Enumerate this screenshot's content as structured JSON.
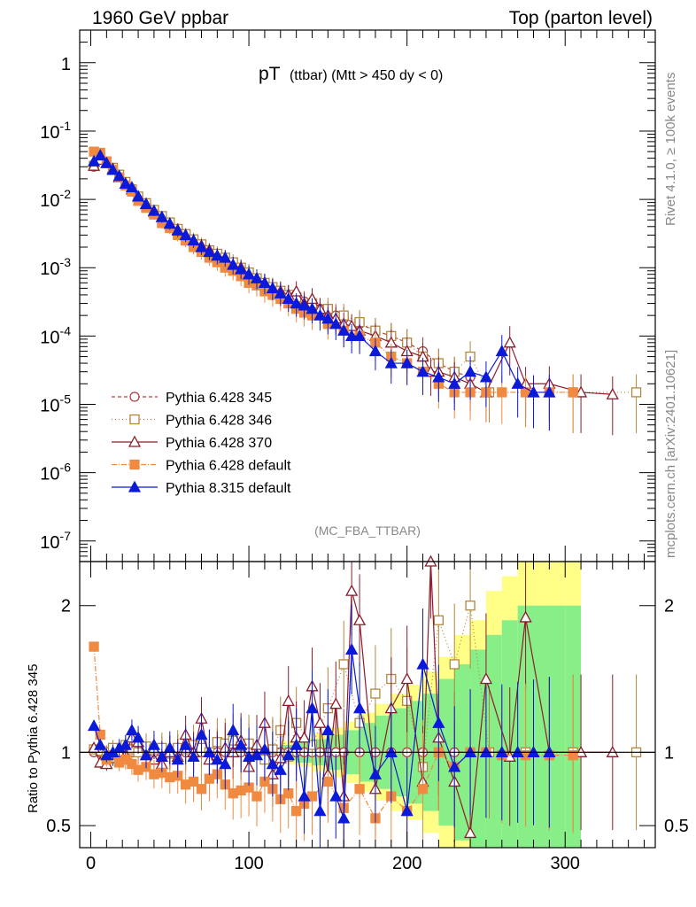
{
  "header": {
    "left": "1960 GeV ppbar",
    "right": "Top (parton level)"
  },
  "side_labels": {
    "top": "Rivet 4.1.0, ≥ 100k events",
    "bottom": "mcplots.cern.ch [arXiv:2401.10621]"
  },
  "chart_data": {
    "type": "line",
    "title_main": "pT",
    "title_rest": "(ttbar) (Mtt > 450 dy < 0)",
    "analysis": "(MC_FBA_TTBAR)",
    "xlabel": "",
    "xlim": [
      -7,
      357
    ],
    "xticks": [
      "0",
      "100",
      "200",
      "300"
    ],
    "main": {
      "yscale": "log",
      "ylim": [
        5e-08,
        3
      ],
      "yticks": [
        {
          "base": "10",
          "exp": "-7",
          "value": 1e-07
        },
        {
          "base": "10",
          "exp": "-6",
          "value": 1e-06
        },
        {
          "base": "10",
          "exp": "-5",
          "value": 1e-05
        },
        {
          "base": "10",
          "exp": "-4",
          "value": 0.0001
        },
        {
          "base": "10",
          "exp": "-3",
          "value": 0.001
        },
        {
          "base": "10",
          "exp": "-2",
          "value": 0.01
        },
        {
          "base": "10",
          "exp": "-1",
          "value": 0.1
        },
        {
          "base": "1",
          "exp": "",
          "value": 1
        }
      ]
    },
    "ratio": {
      "ylabel": "Ratio to Pythia 6.428 345",
      "ylim": [
        0.35,
        2.3
      ],
      "yticks": [
        {
          "label": "0.5",
          "value": 0.5
        },
        {
          "label": "1",
          "value": 1
        },
        {
          "label": "2",
          "value": 2
        }
      ]
    },
    "series": [
      {
        "name": "Pythia 6.428 345",
        "color": "#b04048",
        "marker": "circle-open",
        "dash": "4,3",
        "x": [
          2,
          6,
          10,
          14,
          18,
          22,
          26,
          30,
          35,
          40,
          45,
          50,
          55,
          60,
          65,
          70,
          75,
          80,
          85,
          90,
          95,
          100,
          105,
          110,
          115,
          120,
          125,
          130,
          135,
          140,
          145,
          150,
          155,
          160,
          170,
          180,
          190,
          200,
          210,
          220,
          230,
          240
        ],
        "y": [
          0.03,
          0.04,
          0.034,
          0.028,
          0.022,
          0.017,
          0.013,
          0.011,
          0.0085,
          0.0068,
          0.0055,
          0.0045,
          0.0036,
          0.003,
          0.0025,
          0.0021,
          0.0018,
          0.0015,
          0.0013,
          0.0011,
          0.00095,
          0.0008,
          0.0007,
          0.0006,
          0.00052,
          0.00045,
          0.0004,
          0.00036,
          0.00032,
          0.00028,
          0.00025,
          0.00022,
          0.0002,
          0.00018,
          0.00015,
          0.00012,
          0.0001,
          8e-05,
          6e-05,
          4e-05,
          3e-05,
          2.5e-05
        ],
        "ratio": [
          1,
          1,
          1,
          1,
          1,
          1,
          1,
          1,
          1,
          1,
          1,
          1,
          1,
          1,
          1,
          1,
          1,
          1,
          1,
          1,
          1,
          1,
          1,
          1,
          1,
          1,
          1,
          1,
          1,
          1,
          1,
          1,
          1,
          1,
          1,
          1,
          1,
          1,
          1,
          1,
          1,
          1
        ]
      },
      {
        "name": "Pythia 6.428 346",
        "color": "#b08840",
        "marker": "square-open",
        "dash": "1,3",
        "x": [
          2,
          6,
          10,
          14,
          18,
          22,
          26,
          30,
          35,
          40,
          45,
          50,
          55,
          60,
          65,
          70,
          75,
          80,
          85,
          90,
          95,
          100,
          105,
          110,
          115,
          120,
          125,
          130,
          140,
          150,
          160,
          170,
          180,
          190,
          200,
          210,
          220,
          230,
          240,
          252,
          275,
          305,
          345
        ],
        "y": [
          0.031,
          0.041,
          0.035,
          0.029,
          0.023,
          0.018,
          0.014,
          0.011,
          0.0088,
          0.007,
          0.0057,
          0.0046,
          0.0037,
          0.0031,
          0.0026,
          0.0022,
          0.0018,
          0.0016,
          0.0014,
          0.0012,
          0.001,
          0.00085,
          0.0007,
          0.0006,
          0.00052,
          0.00046,
          0.0004,
          0.00037,
          0.0003,
          0.00025,
          0.0002,
          0.00016,
          0.00012,
          0.0001,
          8e-05,
          5e-05,
          4e-05,
          3e-05,
          5e-05,
          1.5e-05,
          1.5e-05,
          1.5e-05,
          1.5e-05
        ],
        "ratio": [
          1.02,
          1.01,
          1.0,
          1.03,
          0.98,
          1.05,
          1.02,
          1.0,
          1.04,
          1.02,
          1.03,
          0.99,
          1.03,
          1.02,
          1.05,
          1.03,
          1.0,
          1.07,
          1.06,
          1.08,
          1.04,
          1.06,
          1.0,
          0.95,
          1.02,
          1.15,
          0.97,
          1.2,
          1.05,
          1.3,
          1.6,
          1.2,
          1.4,
          1.5,
          1.35,
          0.9,
          1.9,
          1.6,
          2.0,
          1.0,
          1.0,
          1.0,
          1.0
        ]
      },
      {
        "name": "Pythia 6.428 370",
        "color": "#8c1c2c",
        "marker": "triangle-open",
        "dash": "",
        "x": [
          2,
          6,
          10,
          14,
          18,
          22,
          26,
          30,
          35,
          40,
          45,
          50,
          55,
          60,
          65,
          70,
          75,
          80,
          85,
          90,
          95,
          100,
          105,
          110,
          115,
          120,
          125,
          130,
          135,
          140,
          145,
          150,
          155,
          160,
          165,
          170,
          180,
          190,
          200,
          210,
          215,
          220,
          230,
          240,
          250,
          265,
          275,
          290,
          310,
          330
        ],
        "y": [
          0.031,
          0.038,
          0.034,
          0.028,
          0.021,
          0.017,
          0.014,
          0.011,
          0.0086,
          0.0066,
          0.0055,
          0.0044,
          0.0036,
          0.003,
          0.0025,
          0.0021,
          0.0018,
          0.0015,
          0.0013,
          0.0011,
          0.001,
          0.0008,
          0.0007,
          0.0006,
          0.0005,
          0.00045,
          0.0004,
          0.00045,
          0.0003,
          0.00035,
          0.00025,
          0.0002,
          0.00018,
          0.00015,
          0.00014,
          0.00012,
          0.0001,
          8e-05,
          6e-05,
          5e-05,
          3e-05,
          3e-05,
          2.5e-05,
          2e-05,
          1.5e-05,
          8e-05,
          2e-05,
          2e-05,
          1.5e-05,
          1.4e-05
        ],
        "ratio": [
          1.03,
          0.93,
          0.92,
          0.96,
          1.0,
          0.98,
          1.1,
          1.07,
          0.98,
          0.95,
          0.92,
          1.0,
          0.97,
          1.12,
          1.0,
          1.23,
          0.95,
          0.98,
          1.03,
          1.0,
          1.08,
          0.9,
          1.05,
          1.2,
          0.85,
          0.96,
          1.35,
          1.1,
          1.1,
          1.45,
          1.2,
          0.85,
          1.33,
          0.7,
          2.1,
          1.9,
          0.75,
          1.3,
          1.5,
          0.8,
          2.3,
          1.1,
          0.8,
          0.45,
          1.5,
          0.97,
          1.92,
          1.0,
          1.0,
          1.0
        ]
      },
      {
        "name": "Pythia 6.428 default",
        "color": "#f08a40",
        "marker": "square-filled",
        "dash": "6,2,1,2",
        "x": [
          2,
          6,
          10,
          14,
          18,
          22,
          26,
          30,
          35,
          40,
          45,
          50,
          55,
          60,
          65,
          70,
          75,
          80,
          85,
          90,
          95,
          100,
          105,
          110,
          115,
          120,
          125,
          130,
          135,
          140,
          150,
          160,
          170,
          180,
          190,
          200,
          210,
          220,
          230,
          240,
          250,
          260,
          275,
          290,
          305
        ],
        "y": [
          0.05,
          0.048,
          0.036,
          0.027,
          0.021,
          0.016,
          0.013,
          0.0095,
          0.0075,
          0.006,
          0.0045,
          0.0038,
          0.003,
          0.0025,
          0.002,
          0.0017,
          0.0014,
          0.0012,
          0.001,
          0.0009,
          0.00075,
          0.0006,
          0.00055,
          0.00045,
          0.0004,
          0.00035,
          0.0003,
          0.00025,
          0.00022,
          0.0002,
          0.00015,
          0.00012,
          0.0001,
          8e-05,
          5e-05,
          4e-05,
          3e-05,
          2e-05,
          1.5e-05,
          1.5e-05,
          1.5e-05,
          1.5e-05,
          1.5e-05,
          1.5e-05,
          1.5e-05
        ],
        "ratio": [
          1.72,
          1.12,
          0.95,
          0.98,
          0.93,
          0.95,
          0.92,
          0.88,
          0.9,
          0.85,
          0.86,
          0.83,
          0.84,
          0.78,
          0.8,
          0.75,
          0.82,
          0.85,
          0.78,
          0.72,
          0.74,
          0.76,
          0.7,
          0.8,
          0.75,
          0.68,
          0.72,
          0.6,
          0.65,
          0.7,
          0.8,
          0.62,
          0.75,
          0.55,
          0.7,
          0.6,
          0.75,
          1.0,
          0.9,
          1.0,
          1.0,
          0.98,
          0.98,
          0.98,
          0.98
        ]
      },
      {
        "name": "Pythia 8.315 default",
        "color": "#0a1ad8",
        "marker": "triangle-filled",
        "dash": "",
        "x": [
          2,
          6,
          10,
          14,
          18,
          22,
          26,
          30,
          35,
          40,
          45,
          50,
          55,
          60,
          65,
          70,
          75,
          80,
          85,
          90,
          95,
          100,
          105,
          110,
          115,
          120,
          125,
          130,
          135,
          140,
          145,
          150,
          155,
          160,
          165,
          170,
          180,
          190,
          200,
          210,
          220,
          230,
          240,
          250,
          260,
          270,
          280,
          290
        ],
        "y": [
          0.036,
          0.044,
          0.034,
          0.027,
          0.022,
          0.017,
          0.015,
          0.011,
          0.0085,
          0.0068,
          0.0055,
          0.0044,
          0.0035,
          0.003,
          0.0025,
          0.002,
          0.0017,
          0.0015,
          0.0014,
          0.0011,
          0.00095,
          0.0008,
          0.0007,
          0.0006,
          0.0005,
          0.00042,
          0.00035,
          0.0003,
          0.00028,
          0.00025,
          0.0002,
          0.00018,
          0.00015,
          0.00012,
          0.0001,
          0.0001,
          6e-05,
          4e-05,
          4e-05,
          3e-05,
          2.5e-05,
          2e-05,
          3e-05,
          2.5e-05,
          6e-05,
          2e-05,
          1.5e-05,
          1.5e-05
        ],
        "ratio": [
          1.18,
          1.05,
          0.98,
          1.0,
          1.03,
          1.05,
          1.15,
          1.1,
          0.98,
          1.05,
          0.97,
          1.03,
          0.95,
          1.05,
          0.97,
          1.12,
          1.0,
          0.95,
          0.92,
          1.15,
          1.05,
          0.97,
          0.98,
          1.02,
          0.92,
          0.88,
          0.98,
          1.05,
          0.7,
          1.3,
          0.6,
          1.15,
          0.7,
          0.55,
          1.7,
          1.3,
          0.85,
          1.0,
          0.6,
          1.6,
          1.2,
          0.9,
          1.0,
          1.0,
          1.0,
          1.0,
          1.0,
          1.0
        ]
      }
    ],
    "mc_error_band": {
      "x": [
        120,
        130,
        140,
        150,
        160,
        170,
        180,
        190,
        200,
        210,
        220,
        230,
        240,
        250,
        260,
        270,
        280,
        300
      ],
      "inner_half": [
        0.05,
        0.07,
        0.09,
        0.12,
        0.15,
        0.2,
        0.25,
        0.3,
        0.35,
        0.4,
        0.5,
        0.6,
        0.7,
        0.8,
        0.9,
        1.0,
        1.0,
        1.0
      ],
      "outer_half": [
        0.08,
        0.1,
        0.13,
        0.17,
        0.21,
        0.27,
        0.33,
        0.4,
        0.46,
        0.55,
        0.65,
        0.8,
        0.9,
        1.1,
        1.2,
        1.3,
        1.3,
        1.3
      ]
    }
  }
}
